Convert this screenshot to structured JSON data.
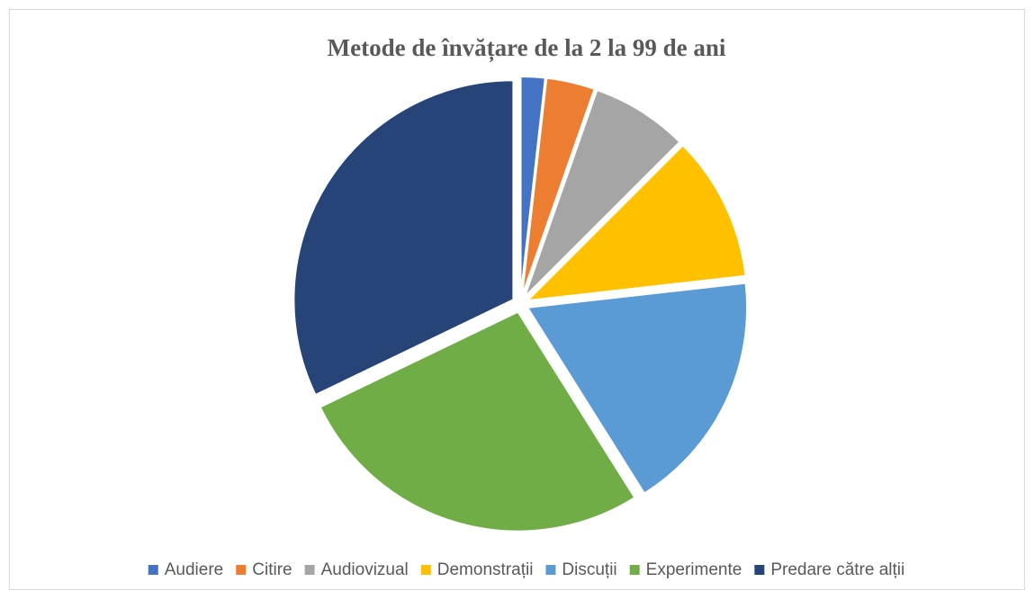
{
  "chart_data": {
    "type": "pie",
    "title": "Metode de învățare de la 2 la 99 de ani",
    "categories": [
      "Audiere",
      "Citire",
      "Audiovizual",
      "Demonstrații",
      "Discuții",
      "Experimente",
      "Predare către alții"
    ],
    "values": [
      5,
      10,
      20,
      30,
      50,
      75,
      90
    ],
    "colors": [
      "#4472c4",
      "#ed7d31",
      "#a5a5a5",
      "#ffc000",
      "#5b9bd5",
      "#70ad47",
      "#264478"
    ],
    "legend": "bottom",
    "exploded": true
  }
}
